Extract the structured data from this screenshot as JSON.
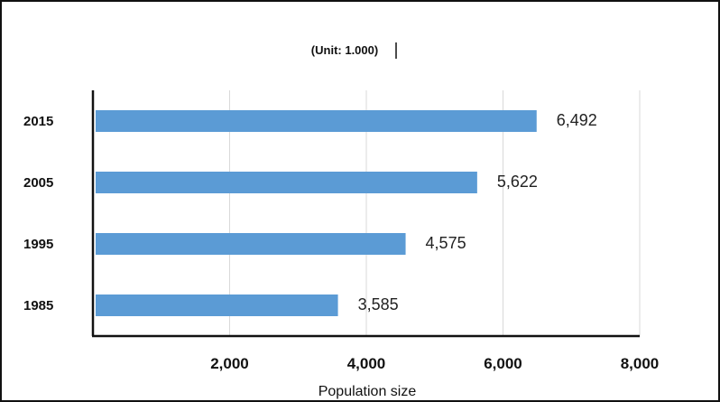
{
  "chart_data": {
    "type": "bar",
    "orientation": "horizontal",
    "unit_note": "(Unit: 1.000)",
    "xlabel": "Population size",
    "categories": [
      "2015",
      "2005",
      "1995",
      "1985"
    ],
    "values": [
      6492,
      5622,
      4575,
      3585
    ],
    "data_labels": [
      "6,492",
      "5,622",
      "4,575",
      "3,585"
    ],
    "xlim": [
      0,
      8000
    ],
    "xticks": [
      2000,
      4000,
      6000,
      8000
    ],
    "xtick_labels": [
      "2,000",
      "4,000",
      "6,000",
      "8,000"
    ],
    "grid": "vertical",
    "bar_color": "#5b9bd5"
  }
}
